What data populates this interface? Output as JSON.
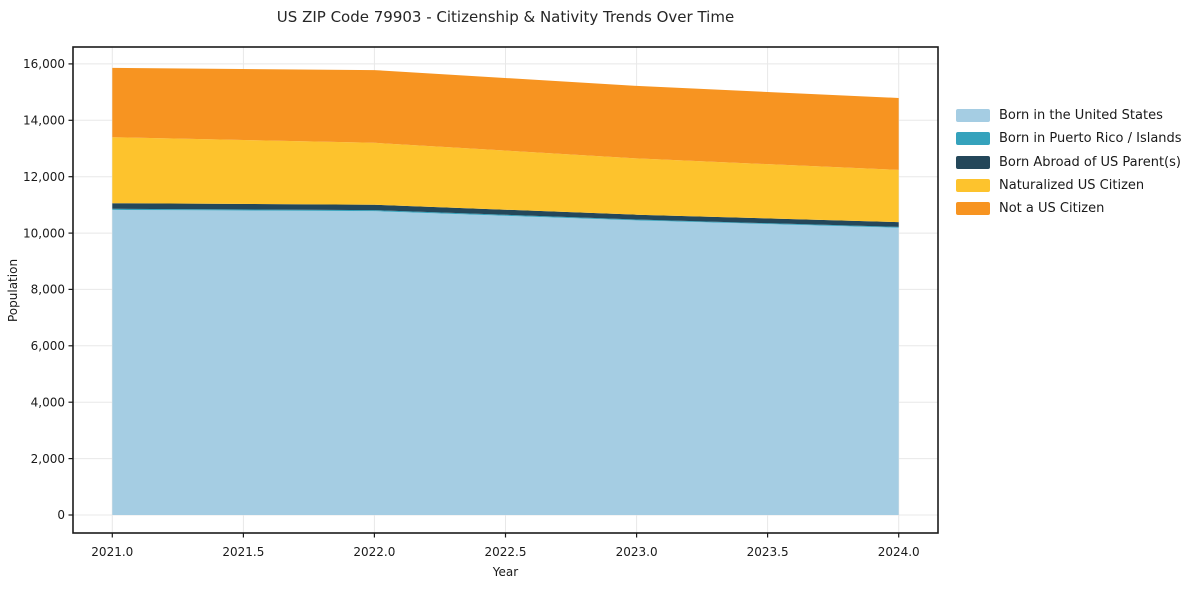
{
  "title": "US ZIP Code 79903 - Citizenship & Nativity Trends Over Time",
  "axes": {
    "x_label": "Year",
    "y_label": "Population",
    "x_tick_labels": [
      "2021.0",
      "2021.5",
      "2022.0",
      "2022.5",
      "2023.0",
      "2023.5",
      "2024.0"
    ],
    "y_tick_labels": [
      "0",
      "2,000",
      "4,000",
      "6,000",
      "8,000",
      "10,000",
      "12,000",
      "14,000",
      "16,000"
    ]
  },
  "chart_data": {
    "type": "area",
    "stacked": true,
    "title": "US ZIP Code 79903 - Citizenship & Nativity Trends Over Time",
    "xlabel": "Year",
    "ylabel": "Population",
    "x": [
      2021,
      2022,
      2023,
      2024
    ],
    "x_ticks": [
      2021.0,
      2021.5,
      2022.0,
      2022.5,
      2023.0,
      2023.5,
      2024.0
    ],
    "y_ticks": [
      0,
      2000,
      4000,
      6000,
      8000,
      10000,
      12000,
      14000,
      16000
    ],
    "xlim": [
      2020.85,
      2024.15
    ],
    "ylim": [
      -640,
      16600
    ],
    "grid": true,
    "legend_position": "right",
    "series": [
      {
        "name": "Born in the United States",
        "color": "#a5cde3",
        "values": [
          10820,
          10780,
          10450,
          10190
        ]
      },
      {
        "name": "Born in Puerto Rico / Islands",
        "color": "#35a2bc",
        "values": [
          40,
          35,
          30,
          30
        ]
      },
      {
        "name": "Born Abroad of US Parent(s)",
        "color": "#24475a",
        "values": [
          200,
          190,
          170,
          170
        ]
      },
      {
        "name": "Naturalized US Citizen",
        "color": "#fdc32d",
        "values": [
          2340,
          2195,
          2000,
          1850
        ]
      },
      {
        "name": "Not a US Citizen",
        "color": "#f79421",
        "values": [
          2460,
          2580,
          2570,
          2550
        ]
      }
    ],
    "stack_totals": [
      15860,
      15780,
      15220,
      14790
    ]
  },
  "style_colors": {
    "spine": "#1a1a1a",
    "grid": "#e8e8e8",
    "background": "#ffffff"
  }
}
